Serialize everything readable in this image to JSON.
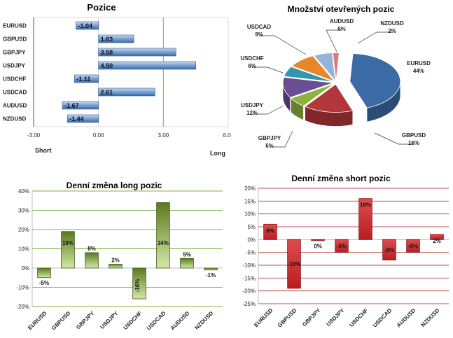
{
  "chart_data": [
    {
      "id": "positions",
      "type": "bar",
      "orientation": "horizontal",
      "title": "Pozice",
      "categories": [
        "EURUSD",
        "GBPUSD",
        "GBPJPY",
        "USDJPY",
        "USDCHF",
        "USDCAD",
        "AUDUSD",
        "NZDUSD"
      ],
      "values": [
        -1.04,
        1.63,
        3.58,
        4.5,
        -1.11,
        2.61,
        -1.67,
        -1.44
      ],
      "value_labels": [
        "-1.04",
        "1.63",
        "3.58",
        "4.50",
        "-1.11",
        "2.61",
        "-1.67",
        "-1.44"
      ],
      "xlim": [
        -3,
        6
      ],
      "xticks": [
        -3,
        0,
        3,
        6
      ],
      "xtick_labels": [
        "-3.00",
        "0.00",
        "3.00",
        "6.00"
      ],
      "left_label": "Short",
      "right_label": "Long",
      "color": "#4f81bd"
    },
    {
      "id": "open-interest",
      "type": "pie",
      "title": "Množství otevřených pozic",
      "slices": [
        {
          "name": "EURUSD",
          "value": 44,
          "label": "44%",
          "color": "#3c6aa5"
        },
        {
          "name": "GBPUSD",
          "value": 16,
          "label": "16%",
          "color": "#b3363a"
        },
        {
          "name": "GBPJPY",
          "value": 6,
          "label": "6%",
          "color": "#8db23d"
        },
        {
          "name": "USDJPY",
          "value": 12,
          "label": "12%",
          "color": "#6b4d92"
        },
        {
          "name": "USDCHF",
          "value": 6,
          "label": "6%",
          "color": "#2f98ac"
        },
        {
          "name": "USDCAD",
          "value": 9,
          "label": "9%",
          "color": "#e8862c"
        },
        {
          "name": "AUDUSD",
          "value": 6,
          "label": "6%",
          "color": "#95b3d7"
        },
        {
          "name": "NZDUSD",
          "value": 2,
          "label": "2%",
          "color": "#e07878"
        }
      ]
    },
    {
      "id": "long-change",
      "type": "bar",
      "title": "Denní změna long pozic",
      "categories": [
        "EURUSD",
        "GBPUSD",
        "GBPJPY",
        "USDJPY",
        "USDCHF",
        "USDCAD",
        "AUDUSD",
        "NZDUSD"
      ],
      "values": [
        -5,
        19,
        8,
        2,
        -16,
        34,
        5,
        -1
      ],
      "value_labels": [
        "-5%",
        "19%",
        "8%",
        "2%",
        "-16%",
        "34%",
        "5%",
        "-1%"
      ],
      "ylim": [
        -20,
        40
      ],
      "yticks": [
        -20,
        -10,
        0,
        10,
        20,
        30,
        40
      ],
      "ytick_labels": [
        "-20%",
        "-10%",
        "0%",
        "10%",
        "20%",
        "30%",
        "40%"
      ],
      "grid": true,
      "color": "#6f8f2f"
    },
    {
      "id": "short-change",
      "type": "bar",
      "title": "Denní změna short pozic",
      "categories": [
        "EURUSD",
        "GBPUSD",
        "GBPJPY",
        "USDJPY",
        "USDCHF",
        "USDCAD",
        "AUDUSD",
        "NZDUSD"
      ],
      "values": [
        6,
        -19,
        0,
        -5,
        16,
        -8,
        -5,
        2
      ],
      "value_labels": [
        "6%",
        "-19%",
        "0%",
        "-5%",
        "16%",
        "-8%",
        "-5%",
        "2%"
      ],
      "ylim": [
        -25,
        20
      ],
      "yticks": [
        -25,
        -20,
        -15,
        -10,
        -5,
        0,
        5,
        10,
        15,
        20
      ],
      "ytick_labels": [
        "-25%",
        "-20%",
        "-15%",
        "-10%",
        "-5%",
        "0%",
        "5%",
        "10%",
        "15%",
        "20%"
      ],
      "grid": true,
      "color": "#c0282b"
    }
  ]
}
